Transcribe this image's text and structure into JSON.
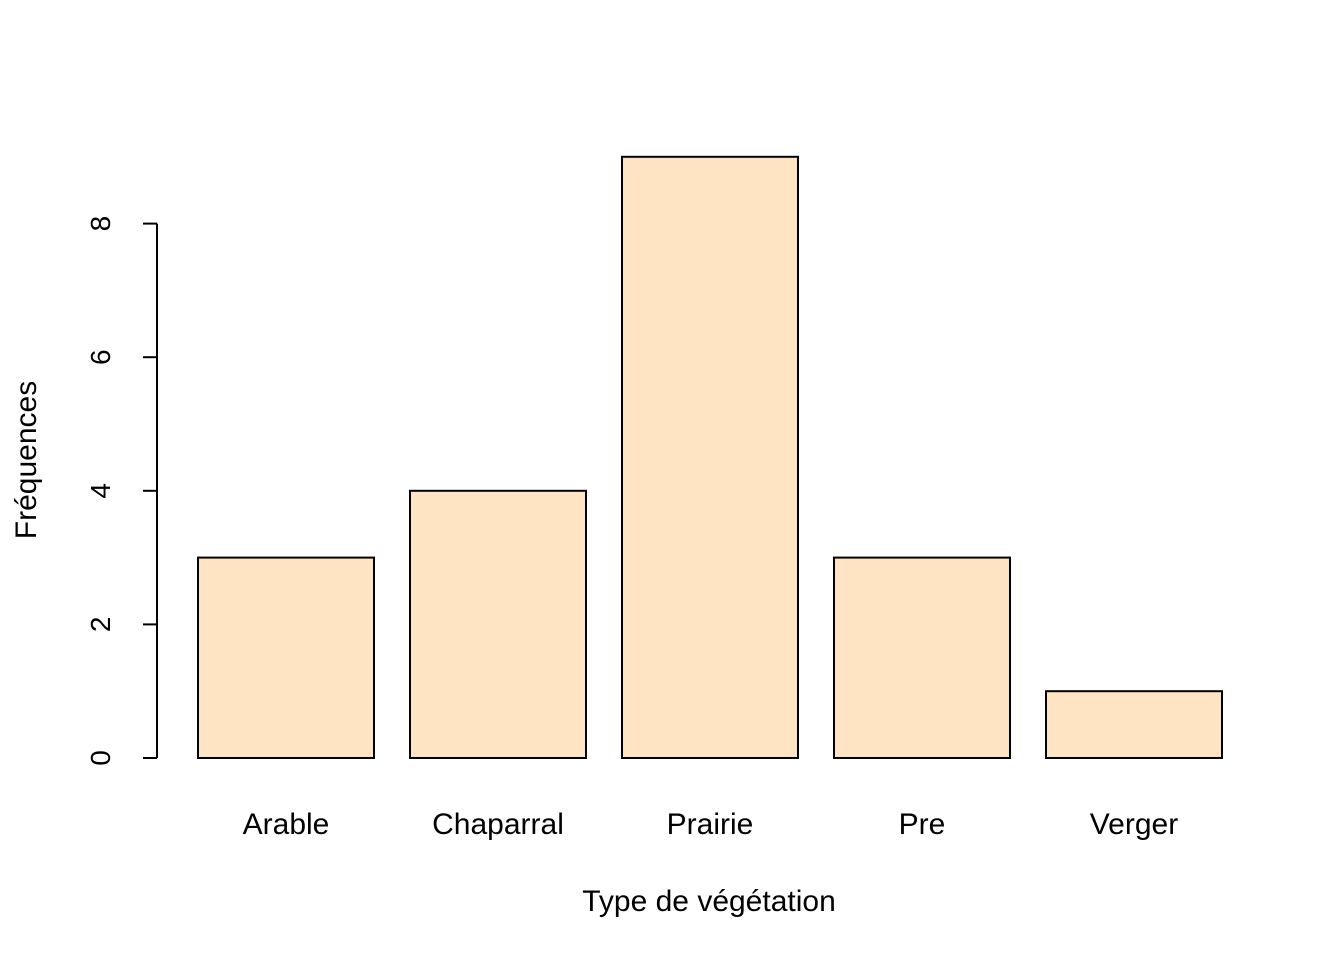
{
  "chart_data": {
    "type": "bar",
    "title": "",
    "xlabel": "Type de végétation",
    "ylabel": "Fréquences",
    "categories": [
      "Arable",
      "Chaparral",
      "Prairie",
      "Pre",
      "Verger"
    ],
    "values": [
      3,
      4,
      9,
      3,
      1
    ],
    "yticks": [
      "0",
      "2",
      "4",
      "6",
      "8"
    ],
    "ylim": [
      0,
      9
    ],
    "grid": false,
    "legend": "none",
    "colors": {
      "bar_fill": "#FFE4C4",
      "bar_stroke": "#000000"
    }
  }
}
